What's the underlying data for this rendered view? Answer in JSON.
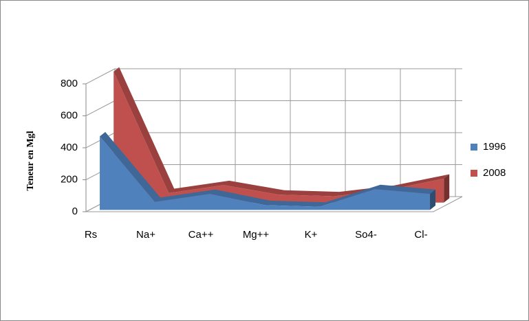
{
  "chart_data": {
    "type": "area3d",
    "y_label": "Teneur en Mgl",
    "categories": [
      "Rs",
      "Na+",
      "Ca++",
      "Mg++",
      "K+",
      "So4-",
      "Cl-"
    ],
    "series": [
      {
        "name": "1996",
        "color": "#4f81bd",
        "values": [
          460,
          50,
          100,
          30,
          20,
          130,
          100
        ]
      },
      {
        "name": "2008",
        "color": "#c0504d",
        "values": [
          820,
          60,
          110,
          50,
          40,
          80,
          150
        ]
      }
    ],
    "ylim": [
      0,
      800
    ],
    "yticks": [
      0,
      200,
      400,
      600,
      800
    ],
    "grid": true
  }
}
